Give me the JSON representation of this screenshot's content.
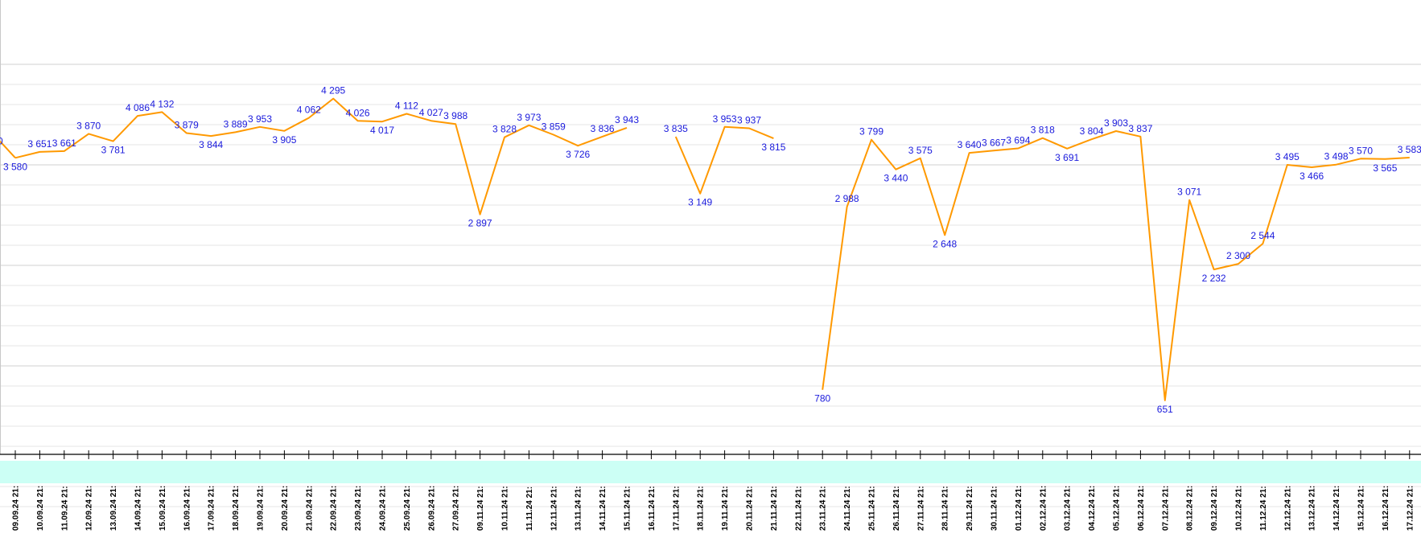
{
  "chart_data": {
    "type": "line",
    "title": "",
    "xlabel": "",
    "ylabel": "",
    "ylim": [
      0,
      5000
    ],
    "grid": true,
    "legend": "none",
    "series_color": "#ff9900",
    "label_color": "#1a1adc",
    "band_color": "#ccfff5",
    "categories": [
      "09.09.24 21:",
      "10.09.24 21:",
      "11.09.24 21:",
      "12.09.24 21:",
      "13.09.24 21:",
      "14.09.24 21:",
      "15.09.24 21:",
      "16.09.24 21:",
      "17.09.24 21:",
      "18.09.24 21:",
      "19.09.24 21:",
      "20.09.24 21:",
      "21.09.24 21:",
      "22.09.24 21:",
      "23.09.24 21:",
      "24.09.24 21:",
      "25.09.24 21:",
      "26.09.24 21:",
      "27.09.24 21:",
      "09.11.24 21:",
      "10.11.24 21:",
      "11.11.24 21:",
      "12.11.24 21:",
      "13.11.24 21:",
      "14.11.24 21:",
      "15.11.24 21:",
      "16.11.24 21:",
      "17.11.24 21:",
      "18.11.24 21:",
      "19.11.24 21:",
      "20.11.24 21:",
      "21.11.24 21:",
      "22.11.24 21:",
      "23.11.24 21:",
      "24.11.24 21:",
      "25.11.24 21:",
      "26.11.24 21:",
      "27.11.24 21:",
      "28.11.24 21:",
      "29.11.24 21:",
      "30.11.24 21:",
      "01.12.24 21:",
      "02.12.24 21:",
      "03.12.24 21:",
      "04.12.24 21:",
      "05.12.24 21:",
      "06.12.24 21:",
      "07.12.24 21:",
      "08.12.24 21:",
      "09.12.24 21:",
      "10.12.24 21:",
      "11.12.24 21:",
      "12.12.24 21:",
      "13.12.24 21:",
      "14.12.24 21:",
      "15.12.24 21:",
      "16.12.24 21:",
      "17.12.24 21:"
    ],
    "series": [
      {
        "values": [
          3580,
          3651,
          3661,
          3870,
          3781,
          4086,
          4132,
          3879,
          3844,
          3889,
          3953,
          3905,
          4062,
          4295,
          4026,
          4017,
          4112,
          4027,
          3988,
          2897,
          3828,
          3973,
          3859,
          3726,
          3836,
          3943,
          null,
          3835,
          3149,
          3953,
          3937,
          3815,
          null,
          780,
          2988,
          3799,
          3440,
          3575,
          2648,
          3640,
          3667,
          3694,
          3818,
          3691,
          3804,
          3903,
          3837,
          651,
          3071,
          2232,
          2300,
          2544,
          3495,
          3466,
          3498,
          3570,
          3565,
          3583
        ],
        "labels": [
          "3 580",
          "3 651",
          "3 661",
          "3 870",
          "3 781",
          "4 086",
          "4 132",
          "3 879",
          "3 844",
          "3 889",
          "3 953",
          "3 905",
          "4 062",
          "4 295",
          "4 026",
          "4 017",
          "4 112",
          "4 027",
          "3 988",
          "2 897",
          "3 828",
          "3 973",
          "3 859",
          "3 726",
          "3 836",
          "3 943",
          "",
          "3 835",
          "3 149",
          "3 953",
          "3 937",
          "3 815",
          "",
          "780",
          "2 988",
          "3 799",
          "3 440",
          "3 575",
          "2 648",
          "3 640",
          "3 667",
          "3 694",
          "3 818",
          "3 691",
          "3 804",
          "3 903",
          "3 837",
          "651",
          "3 071",
          "2 232",
          "2 300",
          "2 544",
          "3 495",
          "3 466",
          "3 498",
          "3 570",
          "3 565",
          "3 583"
        ]
      }
    ]
  }
}
